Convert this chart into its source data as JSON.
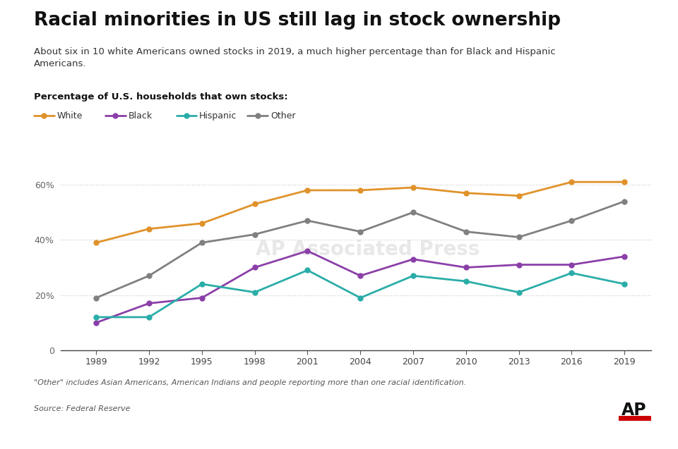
{
  "title": "Racial minorities in US still lag in stock ownership",
  "subtitle": "About six in 10 white Americans owned stocks in 2019, a much higher percentage than for Black and Hispanic\nAmericans.",
  "axis_label": "Percentage of U.S. households that own stocks:",
  "years": [
    1989,
    1992,
    1995,
    1998,
    2001,
    2004,
    2007,
    2010,
    2013,
    2016,
    2019
  ],
  "white": [
    39,
    44,
    46,
    53,
    58,
    58,
    59,
    57,
    56,
    61,
    61
  ],
  "black": [
    10,
    17,
    19,
    30,
    36,
    27,
    33,
    30,
    31,
    31,
    34
  ],
  "hispanic": [
    12,
    12,
    24,
    21,
    29,
    19,
    27,
    25,
    21,
    28,
    24
  ],
  "other": [
    19,
    27,
    39,
    42,
    47,
    43,
    50,
    43,
    41,
    47,
    54
  ],
  "white_color": "#E0922A",
  "black_color": "#8B3FA8",
  "hispanic_color": "#2AADA8",
  "other_color": "#808080",
  "bg_color": "#FFFFFF",
  "grid_color": "#CCCCCC",
  "note": "\"Other\" includes Asian Americans, American Indians and people reporting more than one racial identification.",
  "source": "Source: Federal Reserve",
  "ylim": [
    0,
    70
  ],
  "yticks": [
    0,
    20,
    40,
    60
  ],
  "ap_logo": "AP"
}
